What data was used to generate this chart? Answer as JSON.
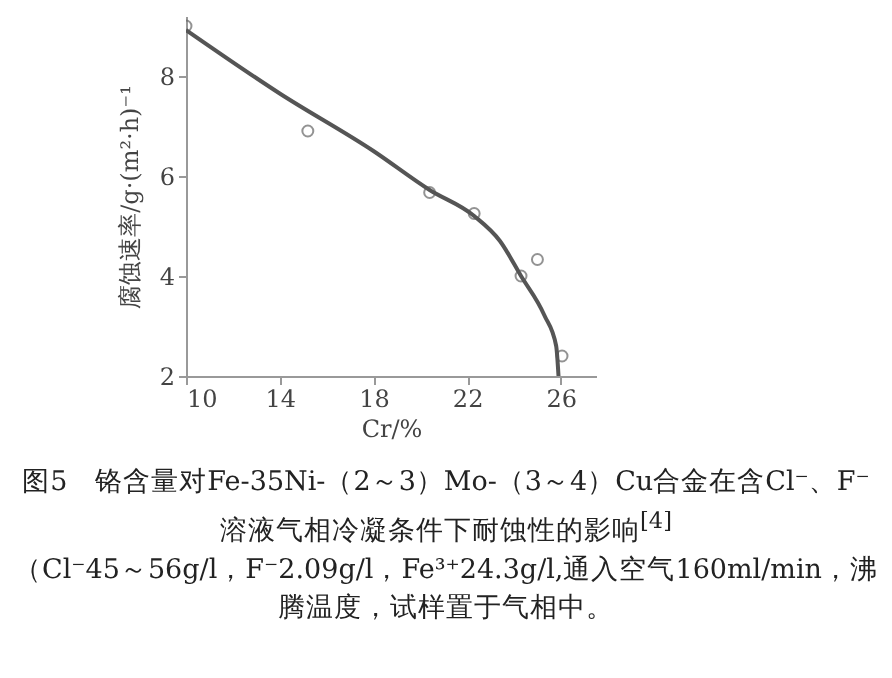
{
  "chart_data": {
    "type": "scatter",
    "title": "图5　铬含量对Fe-35Ni-（2～3）Mo-（3～4）Cu合金在含Cl⁻、F⁻溶液气相冷凝条件下耐蚀性的影响$^{[4]}$",
    "subtitle": "（Cl⁻45～56g/l，F⁻2.09g/l，Fe³⁺24.3g/l,通入空气160ml/min，沸腾温度，试样置于气相中。",
    "xlabel": "Cr/%",
    "ylabel": "腐蚀速率/g·(m²·h)⁻¹",
    "xlim": [
      10,
      27.5
    ],
    "xticks": [
      10,
      14,
      18,
      22,
      26
    ],
    "ylim": [
      2,
      9.2
    ],
    "yticks": [
      2,
      4,
      6,
      8
    ],
    "grid": false,
    "marker": "circle",
    "series": [
      {
        "color": "#666666",
        "x": [
          10,
          15.2,
          20.4,
          22.3,
          24.3,
          25.0,
          26.05
        ],
        "values": [
          9.0,
          6.9,
          5.67,
          5.25,
          4.0,
          4.33,
          2.4
        ]
      },
      {
        "type": "line",
        "color": "#555555",
        "marker": "none",
        "x": [
          10,
          14,
          18,
          20.4,
          22.3,
          23.4,
          24.3,
          25.3,
          25.8,
          25.9
        ],
        "values": [
          8.92,
          7.65,
          6.5,
          5.72,
          5.2,
          4.7,
          4.0,
          3.21,
          2.6,
          2.0
        ]
      }
    ]
  }
}
